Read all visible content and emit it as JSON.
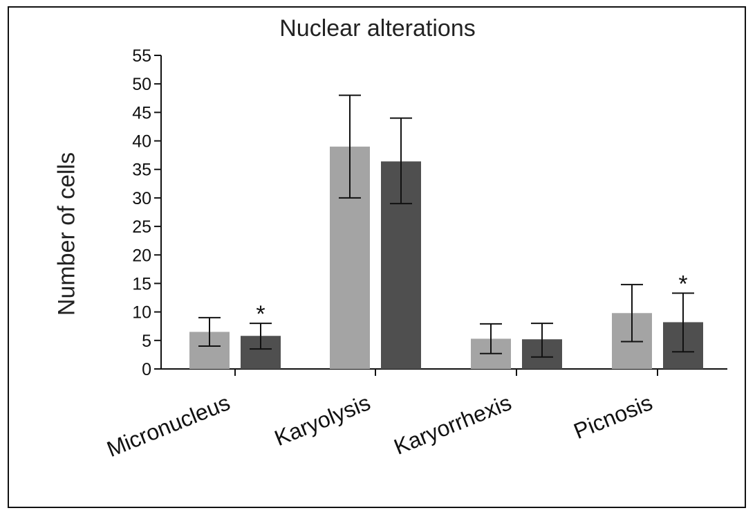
{
  "chart_data": {
    "type": "bar",
    "title": "Nuclear alterations",
    "xlabel": "",
    "ylabel": "Number of cells",
    "ylim": [
      0,
      55
    ],
    "yticks": [
      0,
      5,
      10,
      15,
      20,
      25,
      30,
      35,
      40,
      45,
      50,
      55
    ],
    "categories": [
      "Micronucleus",
      "Karyolysis",
      "Karyorrhexis",
      "Picnosis"
    ],
    "series": [
      {
        "color": "#a4a4a4",
        "values": [
          6.5,
          39,
          5.3,
          9.8
        ],
        "err_low": [
          4,
          30,
          2.7,
          4.8
        ],
        "err_high": [
          9,
          48,
          7.9,
          14.8
        ],
        "annotations": [
          "",
          "",
          "",
          ""
        ]
      },
      {
        "color": "#4f4f4f",
        "values": [
          5.8,
          36.4,
          5.2,
          8.2
        ],
        "err_low": [
          3.5,
          29,
          2.1,
          3
        ],
        "err_high": [
          8,
          44,
          8,
          13.3
        ],
        "annotations": [
          "*",
          "",
          "",
          "*"
        ]
      }
    ],
    "grid": false,
    "legend": "none"
  }
}
